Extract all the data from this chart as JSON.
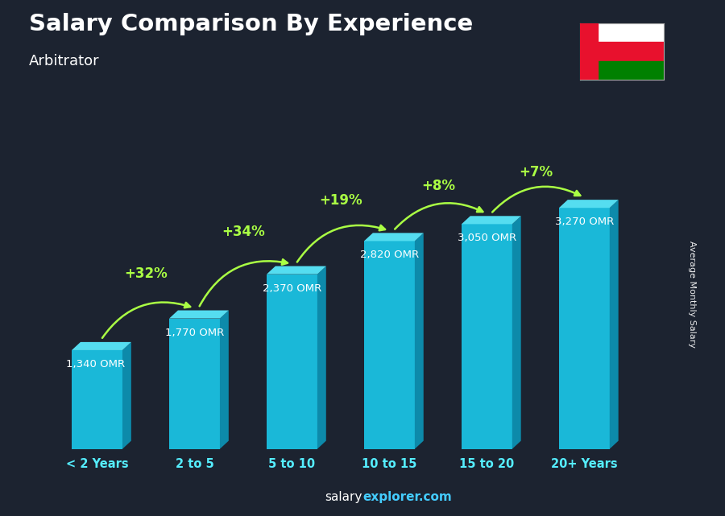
{
  "title": "Salary Comparison By Experience",
  "subtitle": "Arbitrator",
  "categories": [
    "< 2 Years",
    "2 to 5",
    "5 to 10",
    "10 to 15",
    "15 to 20",
    "20+ Years"
  ],
  "values": [
    1340,
    1770,
    2370,
    2820,
    3050,
    3270
  ],
  "value_labels": [
    "1,340 OMR",
    "1,770 OMR",
    "2,370 OMR",
    "2,820 OMR",
    "3,050 OMR",
    "3,270 OMR"
  ],
  "pct_changes": [
    "+32%",
    "+34%",
    "+19%",
    "+8%",
    "+7%"
  ],
  "bar_front_color": "#1ab8d8",
  "bar_top_color": "#55ddf0",
  "bar_side_color": "#0d8aaa",
  "text_color": "#ffffff",
  "pct_color": "#aaff44",
  "cat_color": "#55eeff",
  "ylabel": "Average Monthly Salary",
  "ylim": [
    0,
    4200
  ],
  "footer_salary": "salary",
  "footer_explorer": "explorer.com",
  "footer_color_salary": "#ffffff",
  "footer_color_explorer": "#44ccff",
  "bg_color": "#1c2330"
}
